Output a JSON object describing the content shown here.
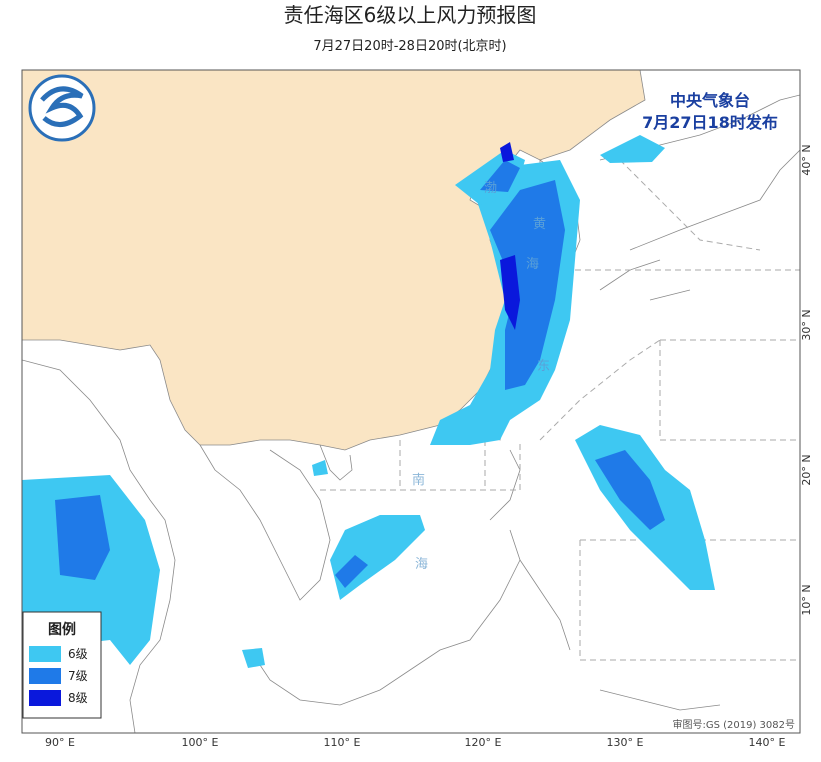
{
  "header": {
    "title": "责任海区6级以上风力预报图",
    "subtitle": "7月27日20时-28日20时(北京时)"
  },
  "issuer": {
    "name": "中央气象台",
    "time": "7月27日18时发布"
  },
  "legend": {
    "title": "图例",
    "items": [
      {
        "label": "6级",
        "color": "#3ec8f2"
      },
      {
        "label": "7级",
        "color": "#1f7ae8"
      },
      {
        "label": "8级",
        "color": "#0a18dc"
      }
    ]
  },
  "lon_labels": [
    "90° E",
    "100° E",
    "110° E",
    "120° E",
    "130° E",
    "140° E"
  ],
  "lat_labels": [
    "10° N",
    "20° N",
    "30° N",
    "40° N"
  ],
  "sea_labels": [
    "渤",
    "黄",
    "海",
    "东",
    "南",
    "海"
  ],
  "approval": "审图号:GS (2019) 3082号"
}
